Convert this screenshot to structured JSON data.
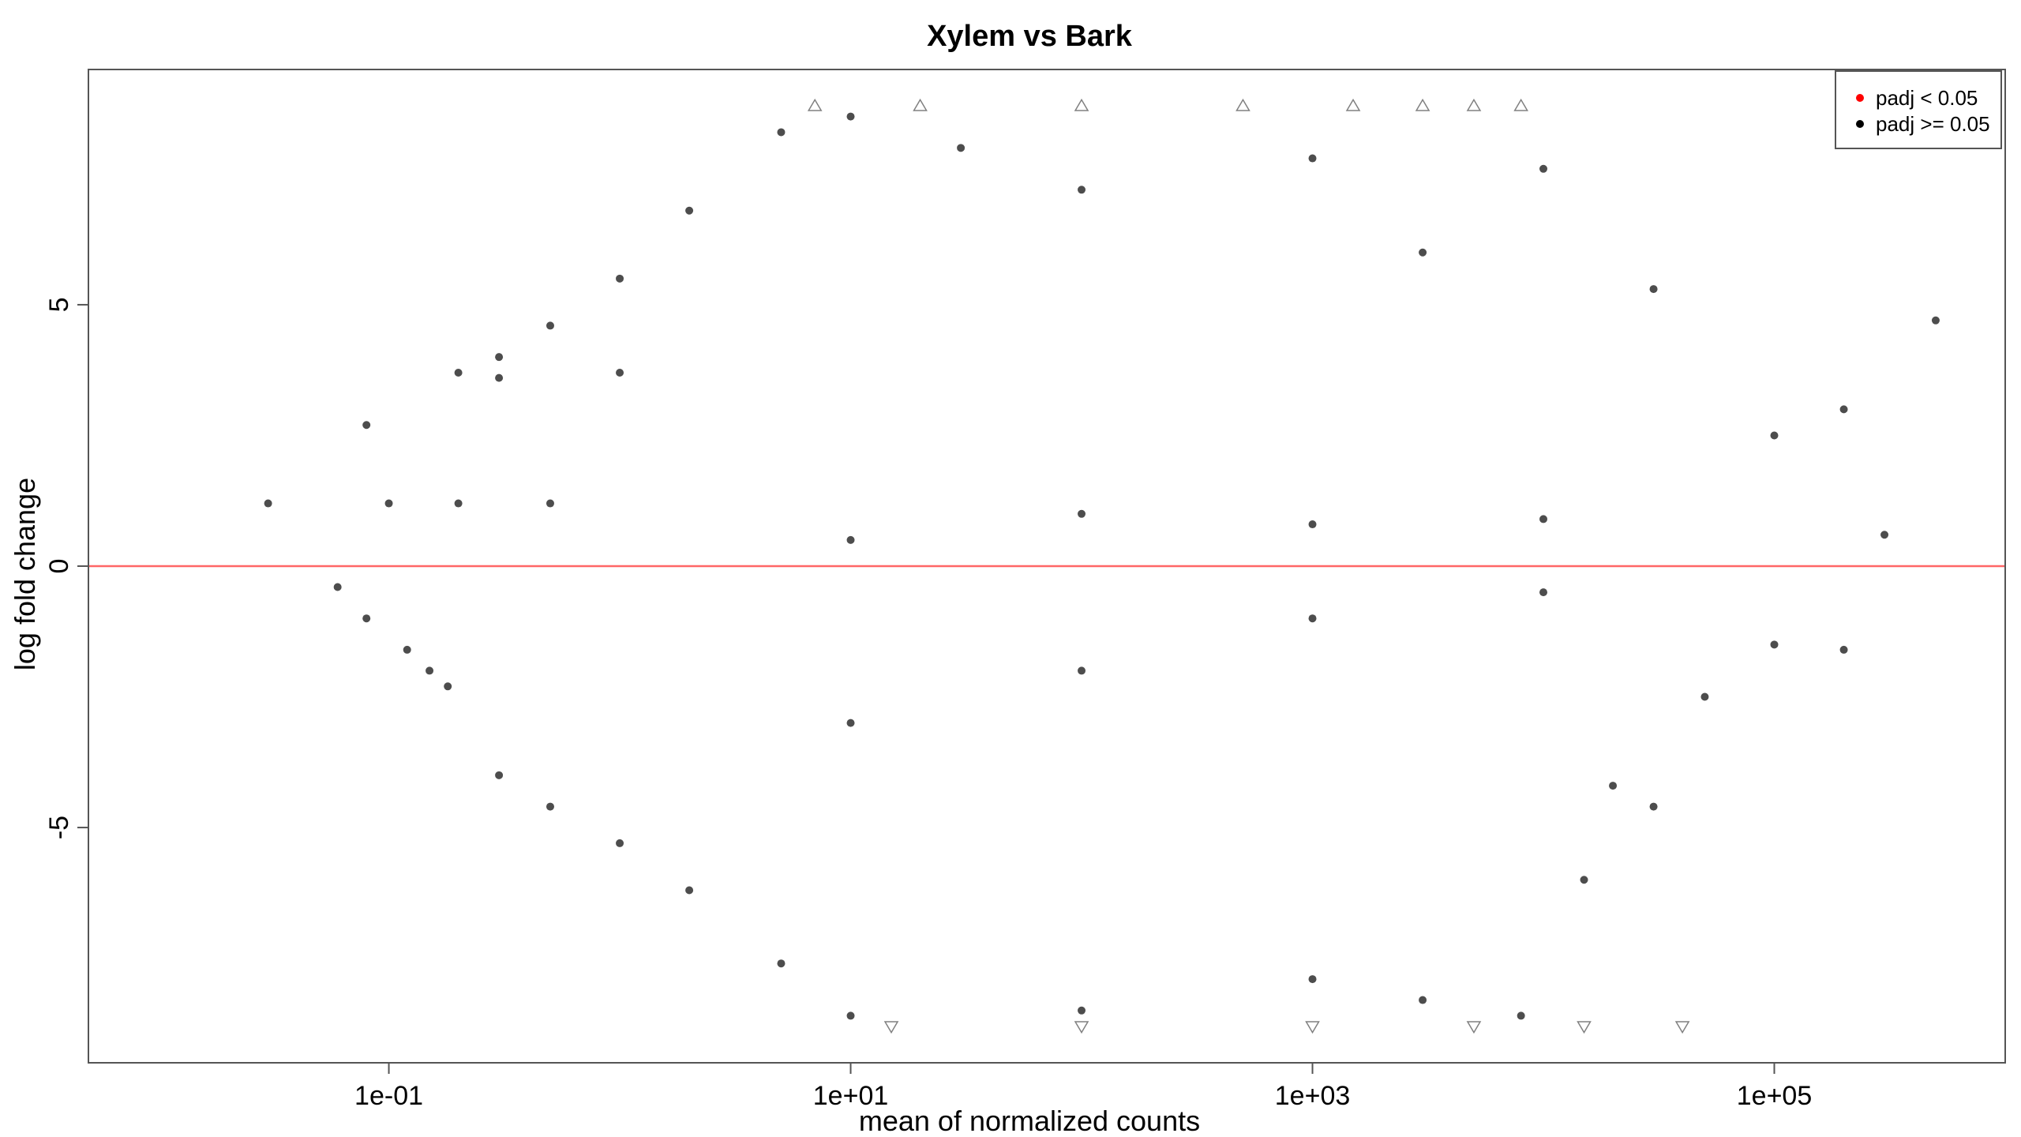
{
  "chart_data": {
    "type": "scatter",
    "title": "Xylem vs Bark",
    "xlabel": "mean of normalized counts",
    "ylabel": "log fold change",
    "x_scale": "log10",
    "xlim": [
      0.005,
      1000000
    ],
    "ylim": [
      -9.5,
      9.5
    ],
    "x_ticks": [
      {
        "value": 0.1,
        "label": "1e-01"
      },
      {
        "value": 10,
        "label": "1e+01"
      },
      {
        "value": 1000,
        "label": "1e+03"
      },
      {
        "value": 100000,
        "label": "1e+05"
      }
    ],
    "y_ticks": [
      {
        "value": -5,
        "label": "-5"
      },
      {
        "value": 0,
        "label": "0"
      },
      {
        "value": 5,
        "label": "5"
      }
    ],
    "hline": {
      "y": 0,
      "color": "#ff6666"
    },
    "grid": false,
    "legend": {
      "position": "top-right",
      "entries": [
        {
          "label": "padj < 0.05",
          "color": "#ff0000"
        },
        {
          "label": "padj >= 0.05",
          "color": "#000000"
        }
      ]
    },
    "series": [
      {
        "name": "padj >= 0.05",
        "color": "#4d4d4d",
        "marker": "dot",
        "points": [
          {
            "x": 0.03,
            "y": 1.2
          },
          {
            "x": 0.1,
            "y": 1.2
          },
          {
            "x": 0.2,
            "y": 1.2
          },
          {
            "x": 0.5,
            "y": 1.2
          },
          {
            "x": 0.06,
            "y": -0.4
          },
          {
            "x": 0.08,
            "y": -1.0
          },
          {
            "x": 0.12,
            "y": -1.6
          },
          {
            "x": 0.15,
            "y": -2.0
          },
          {
            "x": 0.18,
            "y": -2.3
          },
          {
            "x": 0.08,
            "y": 2.7
          },
          {
            "x": 0.2,
            "y": 3.7
          },
          {
            "x": 0.3,
            "y": 4.0
          },
          {
            "x": 0.5,
            "y": 4.6
          },
          {
            "x": 1.0,
            "y": 5.5
          },
          {
            "x": 2.0,
            "y": 6.8
          },
          {
            "x": 5.0,
            "y": 8.3
          },
          {
            "x": 0.3,
            "y": 3.6
          },
          {
            "x": 1.0,
            "y": 3.7
          },
          {
            "x": 0.3,
            "y": -4.0
          },
          {
            "x": 0.5,
            "y": -4.6
          },
          {
            "x": 1.0,
            "y": -5.3
          },
          {
            "x": 2.0,
            "y": -6.2
          },
          {
            "x": 5.0,
            "y": -7.6
          },
          {
            "x": 10,
            "y": -8.6
          },
          {
            "x": 10,
            "y": 8.6
          },
          {
            "x": 30,
            "y": 8.0
          },
          {
            "x": 100,
            "y": 7.2
          },
          {
            "x": 1000,
            "y": 7.8
          },
          {
            "x": 3000,
            "y": 6.0
          },
          {
            "x": 10000,
            "y": 7.6
          },
          {
            "x": 30000,
            "y": 5.3
          },
          {
            "x": 500000,
            "y": 4.7
          },
          {
            "x": 100000,
            "y": 2.5
          },
          {
            "x": 200000,
            "y": 3.0
          },
          {
            "x": 300000,
            "y": 0.6
          },
          {
            "x": 100000,
            "y": -1.5
          },
          {
            "x": 200000,
            "y": -1.6
          },
          {
            "x": 50000,
            "y": -2.5
          },
          {
            "x": 20000,
            "y": -4.2
          },
          {
            "x": 30000,
            "y": -4.6
          },
          {
            "x": 15000,
            "y": -6.0
          },
          {
            "x": 8000,
            "y": -8.6
          },
          {
            "x": 3000,
            "y": -8.3
          },
          {
            "x": 1000,
            "y": -7.9
          },
          {
            "x": 100,
            "y": -8.5
          },
          {
            "x": 10,
            "y": 0.5
          },
          {
            "x": 100,
            "y": 1.0
          },
          {
            "x": 1000,
            "y": 0.8
          },
          {
            "x": 10000,
            "y": 0.9
          },
          {
            "x": 10,
            "y": -3.0
          },
          {
            "x": 100,
            "y": -2.0
          },
          {
            "x": 1000,
            "y": -1.0
          },
          {
            "x": 10000,
            "y": -0.5
          }
        ]
      },
      {
        "name": "padj >= 0.05 (out of range)",
        "color": "#808080",
        "marker": "triangle",
        "points": [
          {
            "x": 7,
            "y": 8.8
          },
          {
            "x": 20,
            "y": 8.8
          },
          {
            "x": 100,
            "y": 8.8
          },
          {
            "x": 500,
            "y": 8.8
          },
          {
            "x": 1500,
            "y": 8.8
          },
          {
            "x": 3000,
            "y": 8.8
          },
          {
            "x": 5000,
            "y": 8.8
          },
          {
            "x": 8000,
            "y": 8.8
          },
          {
            "x": 15,
            "y": -8.8
          },
          {
            "x": 100,
            "y": -8.8
          },
          {
            "x": 1000,
            "y": -8.8
          },
          {
            "x": 5000,
            "y": -8.8
          },
          {
            "x": 15000,
            "y": -8.8
          },
          {
            "x": 40000,
            "y": -8.8
          }
        ]
      }
    ]
  }
}
